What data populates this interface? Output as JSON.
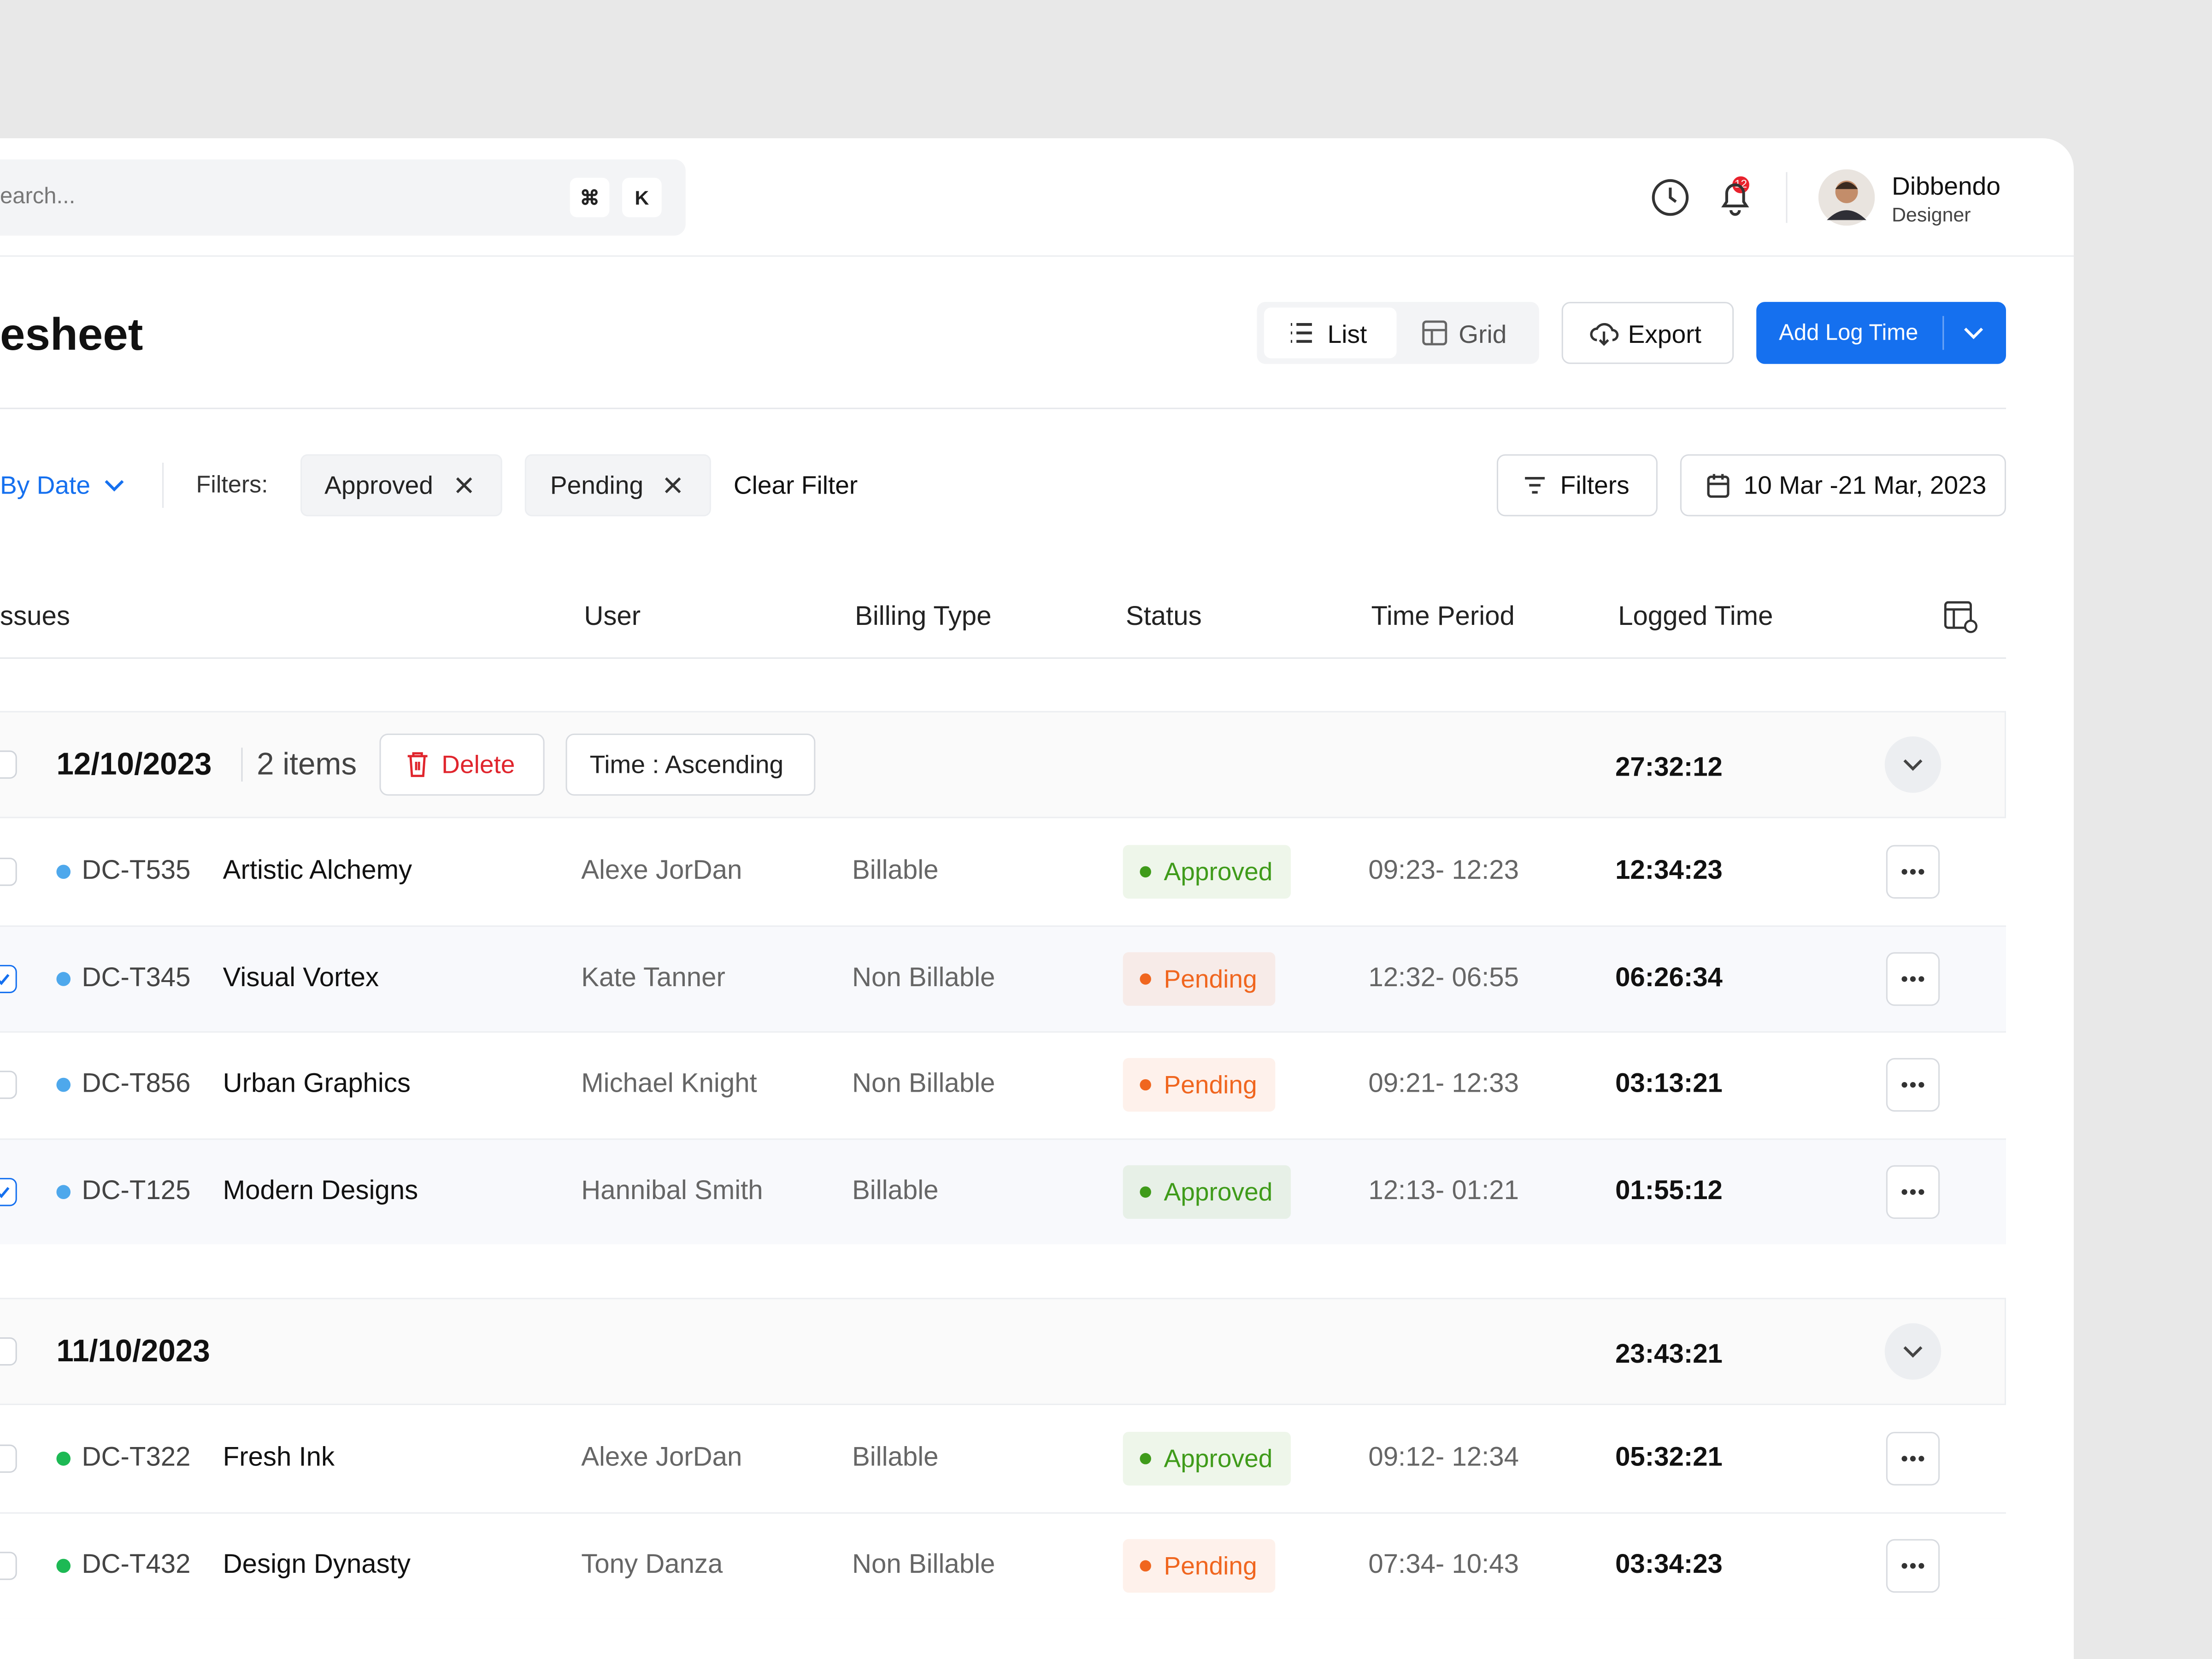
{
  "header": {
    "search_placeholder": "earch...",
    "shortcut_keys": [
      "⌘",
      "K"
    ],
    "notification_count": "12",
    "user_name": "Dibbendo",
    "user_role": "Designer"
  },
  "toolbar": {
    "title": "esheet",
    "views": [
      "List",
      "Grid"
    ],
    "export": "Export",
    "add": "Add Log Time"
  },
  "filters": {
    "sort": "By Date",
    "label": "Filters:",
    "chips": [
      "Approved",
      "Pending"
    ],
    "clear": "Clear Filter",
    "filters_button": "Filters",
    "date_range": "10 Mar -21 Mar, 2023"
  },
  "table": {
    "columns": [
      "ssues",
      "User",
      "Billing Type",
      "Status",
      "Time Period",
      "Logged Time"
    ],
    "groups": [
      {
        "date": "12/10/2023",
        "count": "2 items",
        "delete": "Delete",
        "sort": "Time : Ascending",
        "total": "27:32:12",
        "rows": [
          {
            "id": "DC-T535",
            "name": "Artistic Alchemy",
            "user": "Alexe JorDan",
            "billing": "Billable",
            "status": "Approved",
            "status_color": "#3f9b1a",
            "period": "09:23- 12:23",
            "logged": "12:34:23",
            "checked": false,
            "dot_color": "#4ea8ec"
          },
          {
            "id": "DC-T345",
            "name": "Visual Vortex",
            "user": "Kate Tanner",
            "billing": "Non Billable",
            "status": "Pending",
            "status_color": "#f0661f",
            "period": "12:32- 06:55",
            "logged": "06:26:34",
            "checked": true,
            "dot_color": "#4ea8ec"
          },
          {
            "id": "DC-T856",
            "name": "Urban Graphics",
            "user": "Michael Knight",
            "billing": "Non Billable",
            "status": "Pending",
            "status_color": "#f0661f",
            "period": "09:21- 12:33",
            "logged": "03:13:21",
            "checked": false,
            "dot_color": "#4ea8ec"
          },
          {
            "id": "DC-T125",
            "name": "Modern Designs",
            "user": "Hannibal Smith",
            "billing": "Billable",
            "status": "Approved",
            "status_color": "#3f9b1a",
            "period": "12:13- 01:21",
            "logged": "01:55:12",
            "checked": true,
            "dot_color": "#4ea8ec"
          }
        ]
      },
      {
        "date": "11/10/2023",
        "total": "23:43:21",
        "rows": [
          {
            "id": "DC-T322",
            "name": "Fresh Ink",
            "user": "Alexe JorDan",
            "billing": "Billable",
            "status": "Approved",
            "status_color": "#3f9b1a",
            "period": "09:12- 12:34",
            "logged": "05:32:21",
            "checked": false,
            "dot_color": "#1db954"
          },
          {
            "id": "DC-T432",
            "name": "Design Dynasty",
            "user": "Tony Danza",
            "billing": "Non Billable",
            "status": "Pending",
            "status_color": "#f0661f",
            "period": "07:34- 10:43",
            "logged": "03:34:23",
            "checked": false,
            "dot_color": "#1db954"
          }
        ]
      }
    ]
  }
}
